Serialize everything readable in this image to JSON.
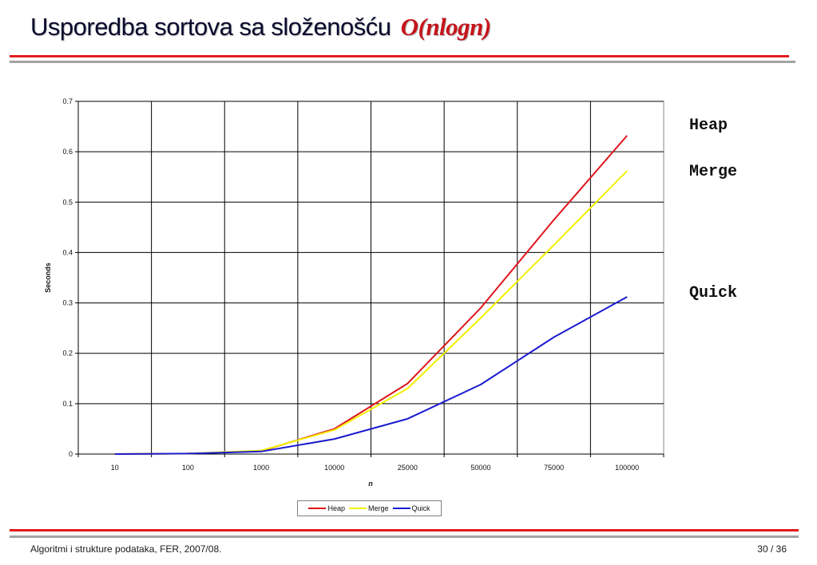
{
  "slide": {
    "title": "Usporedba sortova sa složenošću",
    "title_accent": "O(nlogn)",
    "footer_left": "Algoritmi i strukture podataka, FER, 2007/08.",
    "footer_right": "30 / 36",
    "side_labels": [
      "Heap",
      "Merge",
      "Quick"
    ]
  },
  "colors": {
    "heap": "#e0141b",
    "merge": "#f2f000",
    "quick": "#1a1ad0",
    "title_accent": "#c4141b",
    "rule_red": "#e21c1c",
    "rule_gray": "#a3a3a3"
  },
  "chart_data": {
    "type": "line",
    "title": "",
    "xlabel": "n",
    "ylabel": "Seconds",
    "categories": [
      "10",
      "100",
      "1000",
      "10000",
      "25000",
      "50000",
      "75000",
      "100000"
    ],
    "ylim": [
      0,
      0.7
    ],
    "yticks": [
      "0",
      "0.1",
      "0.2",
      "0.3",
      "0.4",
      "0.5",
      "0.6",
      "0.7"
    ],
    "grid": true,
    "legend_position": "bottom",
    "series": [
      {
        "name": "Heap",
        "color": "#e0141b",
        "values": [
          0,
          0.001,
          0.006,
          0.05,
          0.14,
          0.29,
          0.465,
          0.632
        ]
      },
      {
        "name": "Merge",
        "color": "#f2f000",
        "values": [
          0,
          0.001,
          0.007,
          0.048,
          0.13,
          0.27,
          0.415,
          0.562
        ]
      },
      {
        "name": "Quick",
        "color": "#1a1ad0",
        "values": [
          0,
          0.001,
          0.005,
          0.03,
          0.07,
          0.138,
          0.232,
          0.312
        ]
      }
    ]
  }
}
